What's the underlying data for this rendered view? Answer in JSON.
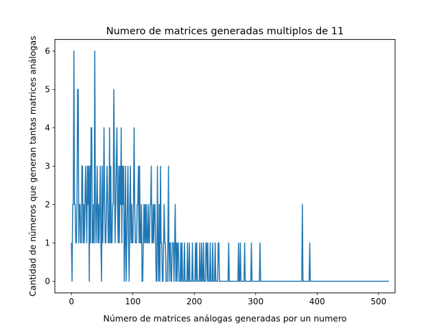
{
  "chart_data": {
    "type": "line",
    "title": "Numero de matrices generadas multiplos de 11",
    "xlabel": "Número de matrices análogas generadas por un numero",
    "ylabel": "Cantidad de números que generan tantas matrices análogas",
    "xlim": [
      -27,
      527
    ],
    "ylim": [
      -0.3,
      6.3
    ],
    "xticks": [
      0,
      100,
      200,
      300,
      400,
      500
    ],
    "yticks": [
      0,
      1,
      2,
      3,
      4,
      5,
      6
    ],
    "grid": false,
    "line_color": "#1f77b4",
    "series": [
      {
        "x_start": 0,
        "x_step": 1,
        "values": [
          1,
          0,
          2,
          2,
          6,
          2,
          2,
          1,
          1,
          2,
          5,
          5,
          1,
          2,
          2,
          1,
          1,
          3,
          3,
          1,
          2,
          1,
          2,
          3,
          2,
          1,
          3,
          2,
          3,
          0,
          3,
          1,
          4,
          4,
          1,
          1,
          2,
          1,
          6,
          2,
          1,
          2,
          3,
          1,
          2,
          1,
          2,
          3,
          1,
          0,
          3,
          1,
          2,
          4,
          2,
          1,
          1,
          2,
          3,
          2,
          1,
          1,
          4,
          1,
          3,
          1,
          1,
          2,
          2,
          5,
          3,
          1,
          2,
          3,
          4,
          2,
          1,
          3,
          1,
          3,
          2,
          4,
          1,
          3,
          2,
          3,
          0,
          1,
          3,
          0,
          1,
          2,
          3,
          1,
          0,
          2,
          3,
          1,
          2,
          1,
          1,
          2,
          4,
          2,
          1,
          1,
          1,
          2,
          2,
          3,
          1,
          3,
          1,
          1,
          2,
          0,
          0,
          1,
          2,
          1,
          2,
          1,
          2,
          1,
          1,
          2,
          1,
          1,
          2,
          2,
          3,
          1,
          1,
          2,
          1,
          2,
          2,
          1,
          0,
          0,
          3,
          1,
          0,
          2,
          0,
          3,
          1,
          1,
          0,
          0,
          1,
          2,
          1,
          1,
          0,
          0,
          0,
          1,
          3,
          0,
          1,
          1,
          0,
          0,
          1,
          1,
          1,
          0,
          1,
          2,
          0,
          1,
          0,
          1,
          1,
          0,
          0,
          0,
          1,
          0,
          1,
          0,
          0,
          0,
          1,
          0,
          0,
          0,
          0,
          1,
          0,
          0,
          1,
          0,
          0,
          0,
          0,
          1,
          0,
          0,
          0,
          0,
          1,
          0,
          1,
          0,
          0,
          0,
          0,
          1,
          0,
          0,
          1,
          0,
          0,
          1,
          0,
          0,
          0,
          1,
          1,
          0,
          1,
          0,
          0,
          0,
          1,
          0,
          0,
          0,
          1,
          0,
          0,
          0,
          1,
          0,
          0,
          0,
          0,
          1,
          1,
          0,
          0,
          0,
          0,
          0,
          0,
          0,
          0,
          0,
          0,
          0,
          0,
          0,
          0,
          0,
          1,
          0,
          0,
          0,
          0,
          0,
          0,
          0,
          0,
          0,
          0,
          0,
          0,
          0,
          0,
          0,
          1,
          0,
          0,
          1,
          0,
          0,
          0,
          0,
          0,
          0,
          1,
          0,
          0,
          0,
          0,
          0,
          0,
          0,
          0,
          0,
          0,
          1,
          0,
          0,
          0,
          0,
          0,
          0,
          0,
          0,
          0,
          0,
          0,
          0,
          0,
          1,
          0,
          0,
          0,
          0,
          0,
          0,
          0,
          0,
          0,
          0,
          0,
          0,
          0,
          0,
          0,
          0,
          0,
          0,
          0,
          0,
          0,
          0,
          0,
          0,
          0,
          0,
          0,
          0,
          0,
          0,
          0,
          0,
          0,
          0,
          0,
          0,
          0,
          0,
          0,
          0,
          0,
          0,
          0,
          0,
          0,
          0,
          0,
          0,
          0,
          0,
          0,
          0,
          0,
          0,
          0,
          0,
          0,
          0,
          0,
          0,
          0,
          0,
          0,
          0,
          0,
          0,
          0,
          0,
          2,
          0,
          0,
          0,
          0,
          0,
          0,
          0,
          0,
          0,
          0,
          0,
          1,
          0,
          0,
          0,
          0,
          0,
          0,
          0,
          0,
          0,
          0,
          0,
          0,
          0,
          0,
          0,
          0,
          0,
          0,
          0,
          0,
          0,
          0,
          0,
          0,
          0,
          0,
          0,
          0,
          0,
          0,
          0,
          0,
          0,
          0,
          0,
          0,
          0,
          0,
          0,
          0,
          0,
          0,
          0,
          0,
          0,
          0,
          0,
          0,
          0,
          0,
          0,
          0,
          0,
          0,
          0,
          0,
          0,
          0,
          0,
          0,
          0,
          0,
          0,
          0,
          0,
          0,
          0,
          0,
          0,
          0,
          0,
          0,
          0,
          0,
          0,
          0,
          0,
          0,
          0,
          0,
          0,
          0,
          0,
          0,
          0,
          0,
          0,
          0,
          0,
          0,
          0,
          0,
          0,
          0,
          0,
          0,
          0,
          0,
          0,
          0,
          0,
          0,
          0,
          0,
          0,
          0,
          0,
          0,
          0,
          0,
          0,
          0,
          0,
          0,
          0,
          0,
          0,
          0,
          0,
          0,
          0,
          0,
          0,
          0,
          0,
          0,
          0,
          0,
          0
        ]
      }
    ]
  }
}
